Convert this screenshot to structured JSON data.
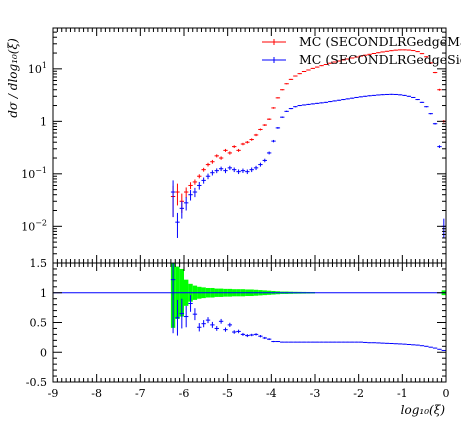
{
  "chart_data": [
    {
      "type": "scatter",
      "panel": "main",
      "ylabel": "dσ / dlog₁₀(ξ)",
      "yscale": "log",
      "xlim": [
        -9,
        0
      ],
      "ylim": [
        0.002,
        60
      ],
      "y_ticks": [
        {
          "value": 0.01,
          "base": "10",
          "exp": "−2"
        },
        {
          "value": 0.1,
          "base": "10",
          "exp": "−1"
        },
        {
          "value": 1,
          "base": "1",
          "exp": ""
        },
        {
          "value": 10,
          "base": "10",
          "exp": "1"
        }
      ],
      "legend": {
        "position": "top-right"
      },
      "series": [
        {
          "name": "MC (SECONDLRGedgeMax)",
          "color": "#ff0000",
          "x": [
            -6.25,
            -6.15,
            -6.05,
            -5.95,
            -5.85,
            -5.75,
            -5.65,
            -5.55,
            -5.45,
            -5.35,
            -5.25,
            -5.15,
            -5.05,
            -4.95,
            -4.85,
            -4.75,
            -4.65,
            -4.55,
            -4.45,
            -4.35,
            -4.25,
            -4.15,
            -4.05,
            -3.95,
            -3.85,
            -3.75,
            -3.65,
            -3.55,
            -3.45,
            -3.35,
            -3.25,
            -3.15,
            -3.05,
            -2.95,
            -2.85,
            -2.75,
            -2.65,
            -2.55,
            -2.45,
            -2.35,
            -2.25,
            -2.15,
            -2.05,
            -1.95,
            -1.85,
            -1.75,
            -1.65,
            -1.55,
            -1.45,
            -1.35,
            -1.25,
            -1.15,
            -1.05,
            -0.95,
            -0.85,
            -0.75,
            -0.65,
            -0.55,
            -0.45,
            -0.35,
            -0.25,
            -0.15,
            -0.05
          ],
          "y": [
            0.037,
            0.045,
            0.03,
            0.045,
            0.06,
            0.07,
            0.09,
            0.12,
            0.15,
            0.17,
            0.22,
            0.2,
            0.28,
            0.25,
            0.33,
            0.28,
            0.37,
            0.4,
            0.45,
            0.55,
            0.7,
            0.85,
            1.1,
            1.8,
            2.8,
            4.0,
            5.2,
            6.3,
            7.3,
            8.1,
            8.9,
            9.5,
            10.2,
            10.8,
            11.5,
            12.1,
            12.8,
            13.5,
            14.1,
            14.8,
            15.4,
            16.1,
            16.8,
            17.5,
            18.2,
            18.9,
            19.6,
            20.3,
            21.0,
            21.6,
            22.2,
            22.7,
            23.0,
            23.0,
            22.8,
            22.3,
            21.3,
            19.5,
            17.0,
            13.0,
            8.5,
            4.0,
            1.0
          ],
          "y_err_low": [
            0.022,
            0.02,
            0.012,
            0.01,
            0.009,
            0.008,
            0.008,
            0.01,
            0.012,
            0.014,
            0.015,
            0.015,
            0.018,
            0.018,
            0.02,
            0.018,
            0.02,
            0.022,
            0.024,
            0.028,
            0.03,
            0.035,
            0.04,
            0.06,
            0.08,
            0.1,
            0.12,
            0.14,
            0.16,
            0.17,
            0.18,
            0.19,
            0.2,
            0.21,
            0.22,
            0.23,
            0.24,
            0.25,
            0.26,
            0.27,
            0.28,
            0.29,
            0.3,
            0.31,
            0.32,
            0.33,
            0.34,
            0.35,
            0.36,
            0.37,
            0.38,
            0.38,
            0.39,
            0.39,
            0.38,
            0.38,
            0.37,
            0.35,
            0.33,
            0.29,
            0.24,
            0.17,
            0.06
          ],
          "y_err_high": [
            0.022,
            0.02,
            0.012,
            0.01,
            0.009,
            0.008,
            0.008,
            0.01,
            0.012,
            0.014,
            0.015,
            0.015,
            0.018,
            0.018,
            0.02,
            0.018,
            0.02,
            0.022,
            0.024,
            0.028,
            0.03,
            0.035,
            0.04,
            0.06,
            0.08,
            0.1,
            0.12,
            0.14,
            0.16,
            0.17,
            0.18,
            0.19,
            0.2,
            0.21,
            0.22,
            0.23,
            0.24,
            0.25,
            0.26,
            0.27,
            0.28,
            0.29,
            0.3,
            0.31,
            0.32,
            0.33,
            0.34,
            0.35,
            0.36,
            0.37,
            0.38,
            0.38,
            0.39,
            0.39,
            0.38,
            0.38,
            0.37,
            0.35,
            0.33,
            0.29,
            0.24,
            0.17,
            0.06
          ]
        },
        {
          "name": "MC (SECONDLRGedgeSigma)",
          "color": "#0000ff",
          "x": [
            -6.25,
            -6.15,
            -6.05,
            -5.95,
            -5.85,
            -5.75,
            -5.65,
            -5.55,
            -5.45,
            -5.35,
            -5.25,
            -5.15,
            -5.05,
            -4.95,
            -4.85,
            -4.75,
            -4.65,
            -4.55,
            -4.45,
            -4.35,
            -4.25,
            -4.15,
            -4.05,
            -3.95,
            -3.85,
            -3.75,
            -3.65,
            -3.55,
            -3.45,
            -3.35,
            -3.25,
            -3.15,
            -3.05,
            -2.95,
            -2.85,
            -2.75,
            -2.65,
            -2.55,
            -2.45,
            -2.35,
            -2.25,
            -2.15,
            -2.05,
            -1.95,
            -1.85,
            -1.75,
            -1.65,
            -1.55,
            -1.45,
            -1.35,
            -1.25,
            -1.15,
            -1.05,
            -0.95,
            -0.85,
            -0.75,
            -0.65,
            -0.55,
            -0.45,
            -0.35,
            -0.25,
            -0.15,
            -0.05
          ],
          "y": [
            0.045,
            0.012,
            0.022,
            0.028,
            0.04,
            0.045,
            0.06,
            0.075,
            0.09,
            0.105,
            0.115,
            0.125,
            0.115,
            0.13,
            0.12,
            0.11,
            0.115,
            0.11,
            0.12,
            0.13,
            0.15,
            0.18,
            0.25,
            0.42,
            0.75,
            1.2,
            1.55,
            1.75,
            1.9,
            2.0,
            2.05,
            2.1,
            2.15,
            2.2,
            2.25,
            2.3,
            2.38,
            2.45,
            2.52,
            2.6,
            2.68,
            2.76,
            2.85,
            2.93,
            3.0,
            3.07,
            3.12,
            3.18,
            3.22,
            3.25,
            3.27,
            3.25,
            3.2,
            3.12,
            3.0,
            2.85,
            2.6,
            2.3,
            1.9,
            1.4,
            0.9,
            0.33,
            0.01
          ],
          "y_err_low": [
            0.03,
            0.006,
            0.008,
            0.008,
            0.009,
            0.009,
            0.01,
            0.01,
            0.011,
            0.012,
            0.012,
            0.012,
            0.012,
            0.012,
            0.012,
            0.011,
            0.011,
            0.011,
            0.012,
            0.012,
            0.013,
            0.014,
            0.016,
            0.022,
            0.03,
            0.038,
            0.043,
            0.046,
            0.048,
            0.049,
            0.05,
            0.05,
            0.051,
            0.052,
            0.052,
            0.053,
            0.054,
            0.055,
            0.056,
            0.057,
            0.058,
            0.059,
            0.06,
            0.06,
            0.061,
            0.062,
            0.062,
            0.063,
            0.063,
            0.064,
            0.064,
            0.064,
            0.063,
            0.062,
            0.061,
            0.06,
            0.057,
            0.053,
            0.048,
            0.041,
            0.033,
            0.02,
            0.004
          ],
          "y_err_high": [
            0.03,
            0.006,
            0.008,
            0.008,
            0.009,
            0.009,
            0.01,
            0.01,
            0.011,
            0.012,
            0.012,
            0.012,
            0.012,
            0.012,
            0.012,
            0.011,
            0.011,
            0.011,
            0.012,
            0.012,
            0.013,
            0.014,
            0.016,
            0.022,
            0.03,
            0.038,
            0.043,
            0.046,
            0.048,
            0.049,
            0.05,
            0.05,
            0.051,
            0.052,
            0.052,
            0.053,
            0.054,
            0.055,
            0.056,
            0.057,
            0.058,
            0.059,
            0.06,
            0.06,
            0.061,
            0.062,
            0.062,
            0.063,
            0.063,
            0.064,
            0.064,
            0.064,
            0.063,
            0.062,
            0.061,
            0.06,
            0.057,
            0.053,
            0.048,
            0.041,
            0.033,
            0.02,
            0.004
          ]
        }
      ]
    },
    {
      "type": "scatter",
      "panel": "ratio",
      "xlabel": "log₁₀(ξ)",
      "xlim": [
        -9,
        0
      ],
      "ylim": [
        -0.5,
        1.5
      ],
      "x_ticks": [
        "-9",
        "-8",
        "-7",
        "-6",
        "-5",
        "-4",
        "-3",
        "-2",
        "-1",
        "0"
      ],
      "y_ticks": [
        "-0.5",
        "0",
        "0.5",
        "1",
        "1.5"
      ],
      "reference_line": {
        "y": 1,
        "color": "#0000ff"
      },
      "band": {
        "color": "#00ff00",
        "x": [
          -6.25,
          -6.15,
          -6.05,
          -5.95,
          -5.85,
          -5.75,
          -5.65,
          -5.55,
          -5.45,
          -5.35,
          -5.25,
          -5.15,
          -5.05,
          -4.95,
          -4.85,
          -4.75,
          -4.65,
          -4.55,
          -4.45,
          -4.35,
          -4.25,
          -4.15,
          -4.05,
          -3.95,
          -3.85,
          -3.75,
          -3.65,
          -3.55,
          -3.45,
          -3.35,
          -3.25,
          -3.15,
          -3.05,
          -0.05
        ],
        "half_width": [
          0.59,
          0.44,
          0.4,
          0.22,
          0.15,
          0.12,
          0.1,
          0.09,
          0.08,
          0.08,
          0.07,
          0.07,
          0.065,
          0.065,
          0.06,
          0.06,
          0.06,
          0.055,
          0.055,
          0.05,
          0.045,
          0.04,
          0.035,
          0.03,
          0.025,
          0.02,
          0.02,
          0.018,
          0.016,
          0.015,
          0.014,
          0.013,
          0.012,
          0.04
        ]
      },
      "series": [
        {
          "name": "MC (SECONDLRGedgeSigma)",
          "color": "#0000ff",
          "x": [
            -6.25,
            -6.15,
            -6.05,
            -5.95,
            -5.85,
            -5.75,
            -5.65,
            -5.55,
            -5.45,
            -5.35,
            -5.25,
            -5.15,
            -5.05,
            -4.95,
            -4.85,
            -4.75,
            -4.65,
            -4.55,
            -4.45,
            -4.35,
            -4.25,
            -4.15,
            -4.05,
            -3.95,
            -3.85,
            -3.75,
            -3.65,
            -3.55,
            -3.45,
            -3.35,
            -3.25,
            -3.15,
            -3.05,
            -2.95,
            -2.85,
            -2.75,
            -2.65,
            -2.55,
            -2.45,
            -2.35,
            -2.25,
            -2.15,
            -2.05,
            -1.95,
            -1.85,
            -1.75,
            -1.65,
            -1.55,
            -1.45,
            -1.35,
            -1.25,
            -1.15,
            -1.05,
            -0.95,
            -0.85,
            -0.75,
            -0.65,
            -0.55,
            -0.45,
            -0.35,
            -0.25,
            -0.15,
            -0.05
          ],
          "y": [
            1.22,
            0.58,
            0.65,
            0.6,
            0.82,
            0.64,
            0.42,
            0.48,
            0.54,
            0.46,
            0.4,
            0.52,
            0.38,
            0.46,
            0.34,
            0.35,
            0.3,
            0.28,
            0.29,
            0.3,
            0.27,
            0.24,
            0.22,
            0.18,
            0.18,
            0.17,
            0.17,
            0.17,
            0.17,
            0.17,
            0.17,
            0.17,
            0.17,
            0.17,
            0.17,
            0.17,
            0.17,
            0.17,
            0.17,
            0.17,
            0.17,
            0.17,
            0.17,
            0.17,
            0.165,
            0.16,
            0.16,
            0.157,
            0.153,
            0.15,
            0.147,
            0.143,
            0.14,
            0.136,
            0.13,
            0.125,
            0.12,
            0.11,
            0.1,
            0.085,
            0.07,
            0.05,
            0.03
          ],
          "y_err": [
            0.9,
            0.3,
            0.25,
            0.18,
            0.14,
            0.1,
            0.07,
            0.06,
            0.05,
            0.05,
            0.04,
            0.04,
            0.035,
            0.035,
            0.03,
            0.03,
            0.025,
            0.025,
            0.02,
            0.02,
            0.02,
            0.018,
            0.015,
            0.01,
            0.008,
            0.006,
            0.005,
            0.005,
            0.005,
            0.005,
            0.005,
            0.005,
            0.005,
            0.005,
            0.005,
            0.005,
            0.005,
            0.005,
            0.005,
            0.005,
            0.005,
            0.005,
            0.005,
            0.005,
            0.005,
            0.005,
            0.005,
            0.005,
            0.005,
            0.005,
            0.005,
            0.005,
            0.005,
            0.005,
            0.005,
            0.005,
            0.005,
            0.005,
            0.005,
            0.005,
            0.005,
            0.005,
            0.005
          ]
        }
      ]
    }
  ]
}
